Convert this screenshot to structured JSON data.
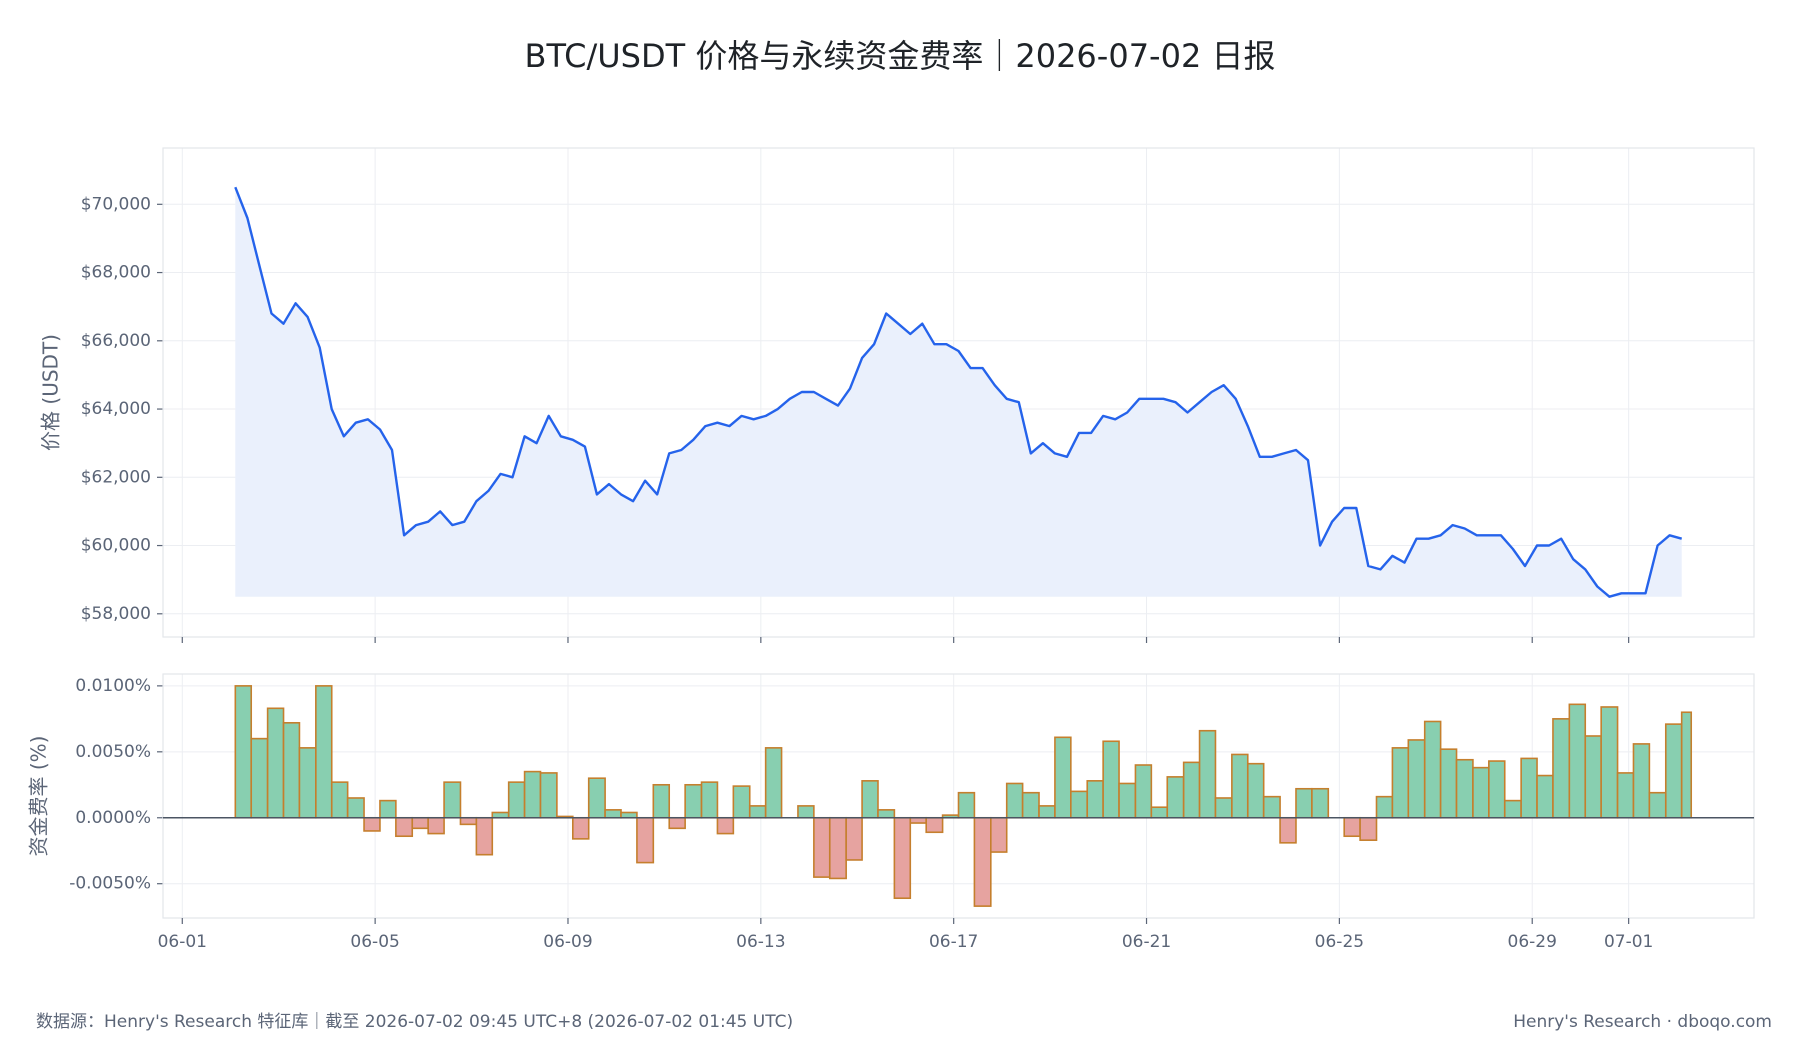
{
  "chart_data": [
    {
      "type": "line",
      "title": "BTC/USDT 价格与永续资金费率｜2026-07-02 日报",
      "ylabel": "价格 (USDT)",
      "color": "#2563eb",
      "fill_color": "#eaf0fc",
      "grid": true,
      "xlim": [
        -0.4,
        32.6
      ],
      "ylim": [
        57320,
        71650
      ],
      "yticks": [
        {
          "value": 58000,
          "label": "$58,000"
        },
        {
          "value": 60000,
          "label": "$60,000"
        },
        {
          "value": 62000,
          "label": "$62,000"
        },
        {
          "value": 64000,
          "label": "$64,000"
        },
        {
          "value": 66000,
          "label": "$66,000"
        },
        {
          "value": 68000,
          "label": "$68,000"
        },
        {
          "value": 70000,
          "label": "$70,000"
        }
      ],
      "x": [
        1.1,
        1.35,
        1.6,
        1.85,
        2.1,
        2.35,
        2.6,
        2.85,
        3.1,
        3.35,
        3.6,
        3.85,
        4.1,
        4.35,
        4.6,
        4.85,
        5.1,
        5.35,
        5.6,
        5.85,
        6.1,
        6.35,
        6.6,
        6.85,
        7.1,
        7.35,
        7.6,
        7.85,
        8.1,
        8.35,
        8.6,
        8.85,
        9.1,
        9.35,
        9.6,
        9.85,
        10.1,
        10.35,
        10.6,
        10.85,
        11.1,
        11.35,
        11.6,
        11.85,
        12.1,
        12.35,
        12.6,
        12.85,
        13.1,
        13.35,
        13.6,
        13.85,
        14.1,
        14.35,
        14.6,
        14.85,
        15.1,
        15.35,
        15.6,
        15.85,
        16.1,
        16.35,
        16.6,
        16.85,
        17.1,
        17.35,
        17.6,
        17.85,
        18.1,
        18.35,
        18.6,
        18.85,
        19.1,
        19.35,
        19.6,
        19.85,
        20.1,
        20.35,
        20.6,
        20.85,
        21.1,
        21.35,
        21.6,
        21.85,
        22.1,
        22.35,
        22.6,
        22.85,
        23.1,
        23.35,
        23.6,
        23.85,
        24.1,
        24.35,
        24.6,
        24.85,
        25.1,
        25.35,
        25.6,
        25.85,
        26.1,
        26.35,
        26.6,
        26.85,
        27.1,
        27.35,
        27.6,
        27.85,
        28.1,
        28.35,
        28.6,
        28.85,
        29.1,
        29.35,
        29.6,
        29.85,
        30.1,
        30.35,
        30.6,
        30.85,
        31.1
      ],
      "values": [
        70500,
        69600,
        68200,
        66800,
        66500,
        67100,
        66700,
        65800,
        64000,
        63200,
        63600,
        63700,
        63400,
        62800,
        60300,
        60600,
        60700,
        61000,
        60600,
        60700,
        61300,
        61600,
        62100,
        62000,
        63200,
        63000,
        63800,
        63200,
        63100,
        62900,
        61500,
        61800,
        61500,
        61300,
        61900,
        61500,
        62700,
        62800,
        63100,
        63500,
        63600,
        63500,
        63800,
        63700,
        63800,
        64000,
        64300,
        64500,
        64500,
        64300,
        64100,
        64600,
        65500,
        65900,
        66800,
        66500,
        66200,
        66500,
        65900,
        65900,
        65700,
        65200,
        65200,
        64700,
        64300,
        64200,
        62700,
        63000,
        62700,
        62600,
        63300,
        63300,
        63800,
        63700,
        63900,
        64300,
        64300,
        64300,
        64200,
        63900,
        64200,
        64500,
        64700,
        64300,
        63500,
        62600,
        62600,
        62700,
        62800,
        62500,
        60000,
        60700,
        61100,
        61100,
        59400,
        59300,
        59700,
        59500,
        60200,
        60200,
        60300,
        60600,
        60500,
        60300,
        60300,
        60300,
        59900,
        59400,
        60000,
        60000,
        60200,
        59600,
        59300,
        58800,
        58500,
        58600,
        58600,
        58600,
        60000,
        60300,
        60200
      ]
    },
    {
      "type": "step",
      "ylabel": "资金费率 (%)",
      "positive_color": "#88cfb0",
      "negative_color": "#e6a3a0",
      "edge_color": "#c57f2d",
      "grid": true,
      "xlim": [
        -0.4,
        32.6
      ],
      "ylim": [
        -0.0076,
        0.0109
      ],
      "xticks": [
        {
          "value": 0,
          "label": "06-01"
        },
        {
          "value": 4,
          "label": "06-05"
        },
        {
          "value": 8,
          "label": "06-09"
        },
        {
          "value": 12,
          "label": "06-13"
        },
        {
          "value": 16,
          "label": "06-17"
        },
        {
          "value": 20,
          "label": "06-21"
        },
        {
          "value": 24,
          "label": "06-25"
        },
        {
          "value": 28,
          "label": "06-29"
        },
        {
          "value": 30,
          "label": "07-01"
        }
      ],
      "yticks": [
        {
          "value": -0.005,
          "label": "-0.0050%"
        },
        {
          "value": 0,
          "label": "0.0000%"
        },
        {
          "value": 0.005,
          "label": "0.0050%"
        },
        {
          "value": 0.01,
          "label": "0.0100%"
        }
      ],
      "x": [
        1.1,
        1.43,
        1.77,
        2.1,
        2.43,
        2.77,
        3.1,
        3.43,
        3.77,
        4.1,
        4.43,
        4.77,
        5.1,
        5.43,
        5.77,
        6.1,
        6.43,
        6.77,
        7.1,
        7.43,
        7.77,
        8.1,
        8.43,
        8.77,
        9.1,
        9.43,
        9.77,
        10.1,
        10.43,
        10.77,
        11.1,
        11.43,
        11.77,
        12.1,
        12.43,
        12.77,
        13.1,
        13.43,
        13.77,
        14.1,
        14.43,
        14.77,
        15.1,
        15.43,
        15.77,
        16.1,
        16.43,
        16.77,
        17.1,
        17.43,
        17.77,
        18.1,
        18.43,
        18.77,
        19.1,
        19.43,
        19.77,
        20.1,
        20.43,
        20.77,
        21.1,
        21.43,
        21.77,
        22.1,
        22.43,
        22.77,
        23.1,
        23.43,
        23.77,
        24.1,
        24.43,
        24.77,
        25.1,
        25.43,
        25.77,
        26.1,
        26.43,
        26.77,
        27.1,
        27.43,
        27.77,
        28.1,
        28.43,
        28.77,
        29.1,
        29.43,
        29.77,
        30.1,
        30.43,
        30.77,
        31.1
      ],
      "values": [
        0.01,
        0.006,
        0.0083,
        0.0072,
        0.0053,
        0.01,
        0.0027,
        0.0015,
        -0.001,
        0.0013,
        -0.0014,
        -0.0008,
        -0.0012,
        0.0027,
        -0.0005,
        -0.0028,
        0.0004,
        0.0027,
        0.0035,
        0.0034,
        0.0001,
        -0.0016,
        0.003,
        0.0006,
        0.0004,
        -0.0034,
        0.0025,
        -0.0008,
        0.0025,
        0.0027,
        -0.0012,
        0.0024,
        0.0009,
        0.0053,
        0.0,
        0.0009,
        -0.0045,
        -0.0046,
        -0.0032,
        0.0028,
        0.0006,
        -0.0061,
        -0.0004,
        -0.0011,
        0.0002,
        0.0019,
        -0.0067,
        -0.0026,
        0.0026,
        0.0019,
        0.0009,
        0.0061,
        0.002,
        0.0028,
        0.0058,
        0.0026,
        0.004,
        0.0008,
        0.0031,
        0.0042,
        0.0066,
        0.0015,
        0.0048,
        0.0041,
        0.0016,
        -0.0019,
        0.0022,
        0.0022,
        0.0,
        -0.0014,
        -0.0017,
        0.0016,
        0.0053,
        0.0059,
        0.0073,
        0.0052,
        0.0044,
        0.0038,
        0.0043,
        0.0013,
        0.0045,
        0.0032,
        0.0075,
        0.0086,
        0.0062,
        0.0084,
        0.0034,
        0.0056,
        0.0019,
        0.0071,
        0.008
      ]
    }
  ],
  "footer": {
    "source": "数据源：Henry's Research 特征库｜截至 2026-07-02 09:45 UTC+8 (2026-07-02 01:45 UTC)",
    "credit": "Henry's Research · dboqo.com"
  }
}
